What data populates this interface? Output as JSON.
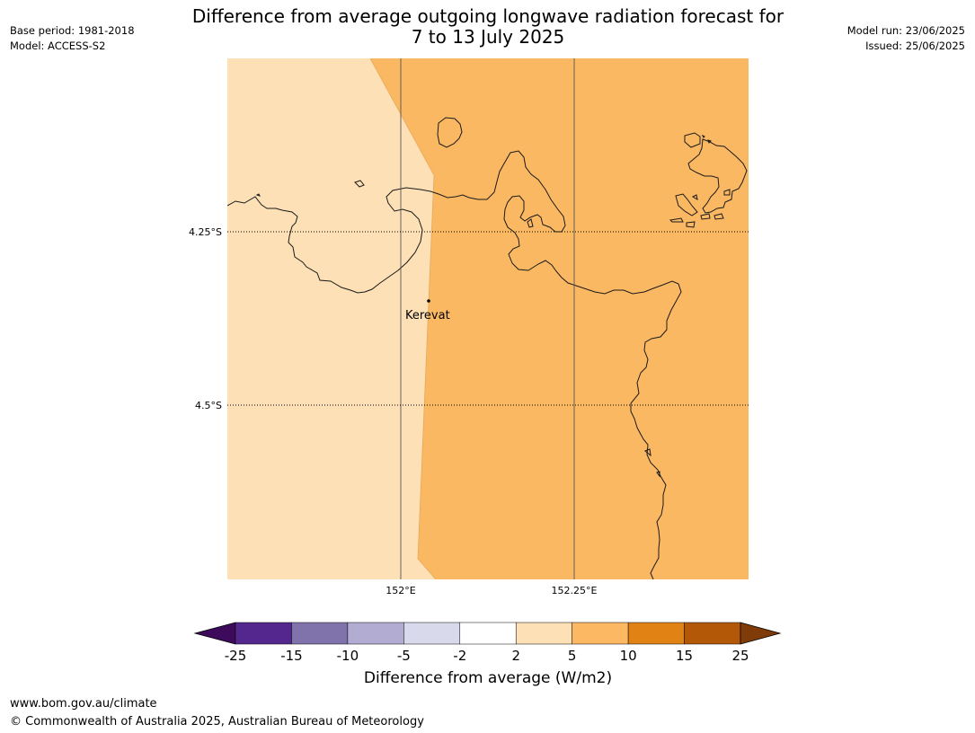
{
  "header": {
    "title_line1": "Difference from average outgoing longwave radiation forecast for",
    "title_line2": "7 to 13 July 2025",
    "base_period": "Base period: 1981-2018",
    "model": "Model: ACCESS-S2",
    "model_run": "Model run: 23/06/2025",
    "issued": "Issued: 25/06/2025"
  },
  "map": {
    "lat_labels": [
      "4.25°S",
      "4.5°S"
    ],
    "lon_labels": [
      "152°E",
      "152.25°E"
    ],
    "place_label": "Kerevat",
    "colors": {
      "west_band": "#fde0b5",
      "east_band": "#fab862",
      "coastline": "#000000",
      "gridline": "#555555"
    }
  },
  "colorbar": {
    "tick_labels": [
      "-25",
      "-15",
      "-10",
      "-5",
      "-2",
      "2",
      "5",
      "10",
      "15",
      "25"
    ],
    "colors": [
      "#3e0a5c",
      "#54278f",
      "#8073ac",
      "#b2abd2",
      "#d8daeb",
      "#ffffff",
      "#fee0b6",
      "#fdb863",
      "#e08214",
      "#b35806",
      "#7f3b08"
    ],
    "label": "Difference from average (W/m2)"
  },
  "footer": {
    "url": "www.bom.gov.au/climate",
    "copyright": "© Commonwealth of Australia 2025, Australian Bureau of Meteorology"
  }
}
